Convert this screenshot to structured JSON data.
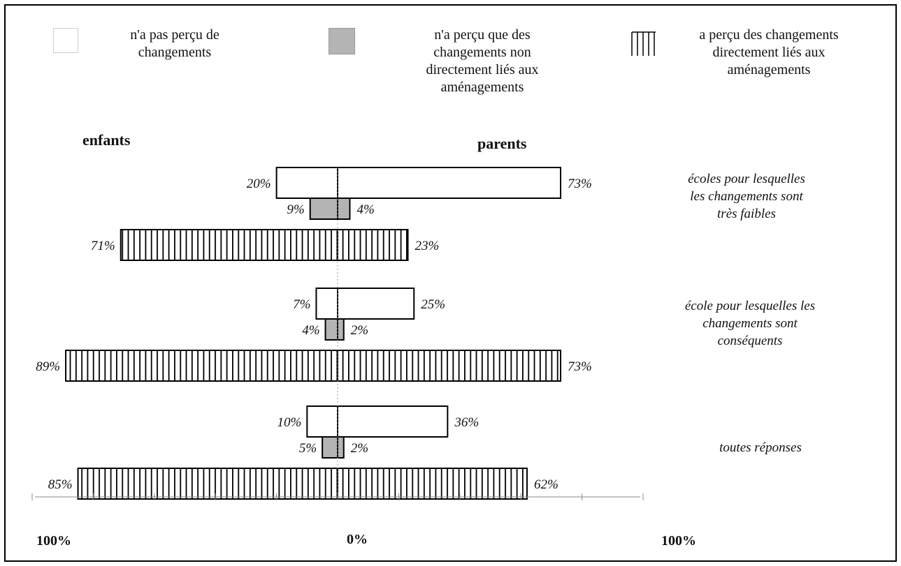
{
  "legend": [
    {
      "key": "none",
      "label_lines": [
        "n'a pas perçu de",
        "changements"
      ]
    },
    {
      "key": "indirect",
      "label_lines": [
        "n'a perçu que des",
        "changements non",
        "directement liés aux",
        "aménagements"
      ]
    },
    {
      "key": "direct",
      "label_lines": [
        "a perçu des changements",
        "directement liés aux",
        "aménagements"
      ]
    }
  ],
  "chart_data": {
    "type": "bar",
    "orientation": "horizontal-diverging",
    "sides": {
      "left": "enfants",
      "right": "parents"
    },
    "axis_labels": {
      "left": "100%",
      "center": "0%",
      "right": "100%"
    },
    "xlim": [
      -100,
      100
    ],
    "groups": [
      {
        "label_lines": [
          "écoles pour lesquelles",
          "les changements sont",
          "très faibles"
        ],
        "bars": [
          {
            "series": "none",
            "enfants": 20,
            "parents": 73
          },
          {
            "series": "indirect",
            "enfants": 9,
            "parents": 4
          },
          {
            "series": "direct",
            "enfants": 71,
            "parents": 23
          }
        ]
      },
      {
        "label_lines": [
          "école pour lesquelles les",
          "changements sont",
          "conséquents"
        ],
        "bars": [
          {
            "series": "none",
            "enfants": 7,
            "parents": 25
          },
          {
            "series": "indirect",
            "enfants": 4,
            "parents": 2
          },
          {
            "series": "direct",
            "enfants": 89,
            "parents": 73
          }
        ]
      },
      {
        "label_lines": [
          "toutes réponses"
        ],
        "bars": [
          {
            "series": "none",
            "enfants": 10,
            "parents": 36
          },
          {
            "series": "indirect",
            "enfants": 5,
            "parents": 2
          },
          {
            "series": "direct",
            "enfants": 85,
            "parents": 62
          }
        ]
      }
    ],
    "series_colors": {
      "none": "#ffffff",
      "indirect": "#b4b4b4",
      "direct": "#ffffff"
    },
    "grid": false,
    "legend_position": "top"
  }
}
